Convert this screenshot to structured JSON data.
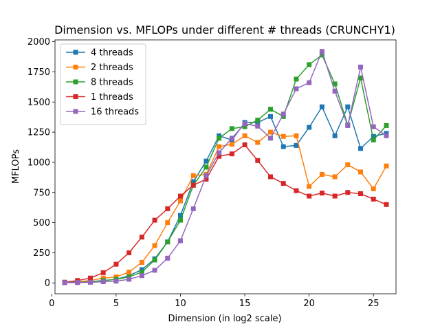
{
  "chart_data": {
    "type": "line",
    "title": "Dimension vs. MFLOPs under different # threads (CRUNCHY1)",
    "xlabel": "Dimension (in log2 scale)",
    "ylabel": "MFLOPs",
    "xlim": [
      0.25,
      26.75
    ],
    "ylim": [
      -90,
      2015
    ],
    "xticks": [
      0,
      5,
      10,
      15,
      20,
      25
    ],
    "yticks": [
      0,
      250,
      500,
      750,
      1000,
      1250,
      1500,
      1750,
      2000
    ],
    "grid": false,
    "legend_position": "upper-left",
    "x": [
      1,
      2,
      3,
      4,
      5,
      6,
      7,
      8,
      9,
      10,
      11,
      12,
      13,
      14,
      15,
      16,
      17,
      18,
      19,
      20,
      21,
      22,
      23,
      24,
      25,
      26
    ],
    "series": [
      {
        "name": "4 threads",
        "color": "#1f77b4",
        "marker": "square",
        "values": [
          5,
          8,
          10,
          20,
          30,
          60,
          110,
          200,
          340,
          560,
          840,
          1010,
          1220,
          1185,
          1330,
          1330,
          1380,
          1130,
          1140,
          1290,
          1460,
          1220,
          1460,
          1115,
          1215,
          1240
        ]
      },
      {
        "name": "2 threads",
        "color": "#ff7f0e",
        "marker": "square",
        "values": [
          5,
          10,
          20,
          40,
          50,
          90,
          170,
          310,
          500,
          680,
          890,
          900,
          1130,
          1150,
          1220,
          1165,
          1250,
          1215,
          1220,
          800,
          900,
          880,
          980,
          920,
          780,
          970
        ]
      },
      {
        "name": "8 threads",
        "color": "#2ca02c",
        "marker": "square",
        "values": [
          3,
          6,
          10,
          20,
          30,
          50,
          90,
          190,
          340,
          520,
          810,
          960,
          1200,
          1280,
          1295,
          1350,
          1440,
          1380,
          1690,
          1810,
          1890,
          1650,
          1310,
          1700,
          1185,
          1305
        ]
      },
      {
        "name": "1 threads",
        "color": "#d62728",
        "marker": "square",
        "values": [
          5,
          20,
          40,
          85,
          155,
          250,
          380,
          520,
          615,
          720,
          810,
          860,
          1050,
          1070,
          1145,
          1015,
          880,
          825,
          765,
          720,
          745,
          720,
          750,
          740,
          695,
          650
        ]
      },
      {
        "name": "16 threads",
        "color": "#9467bd",
        "marker": "square",
        "values": [
          2,
          3,
          5,
          10,
          15,
          30,
          60,
          105,
          205,
          350,
          615,
          890,
          1080,
          1200,
          1320,
          1300,
          1200,
          1400,
          1610,
          1660,
          1920,
          1590,
          1305,
          1790,
          1295,
          1220
        ]
      }
    ]
  }
}
